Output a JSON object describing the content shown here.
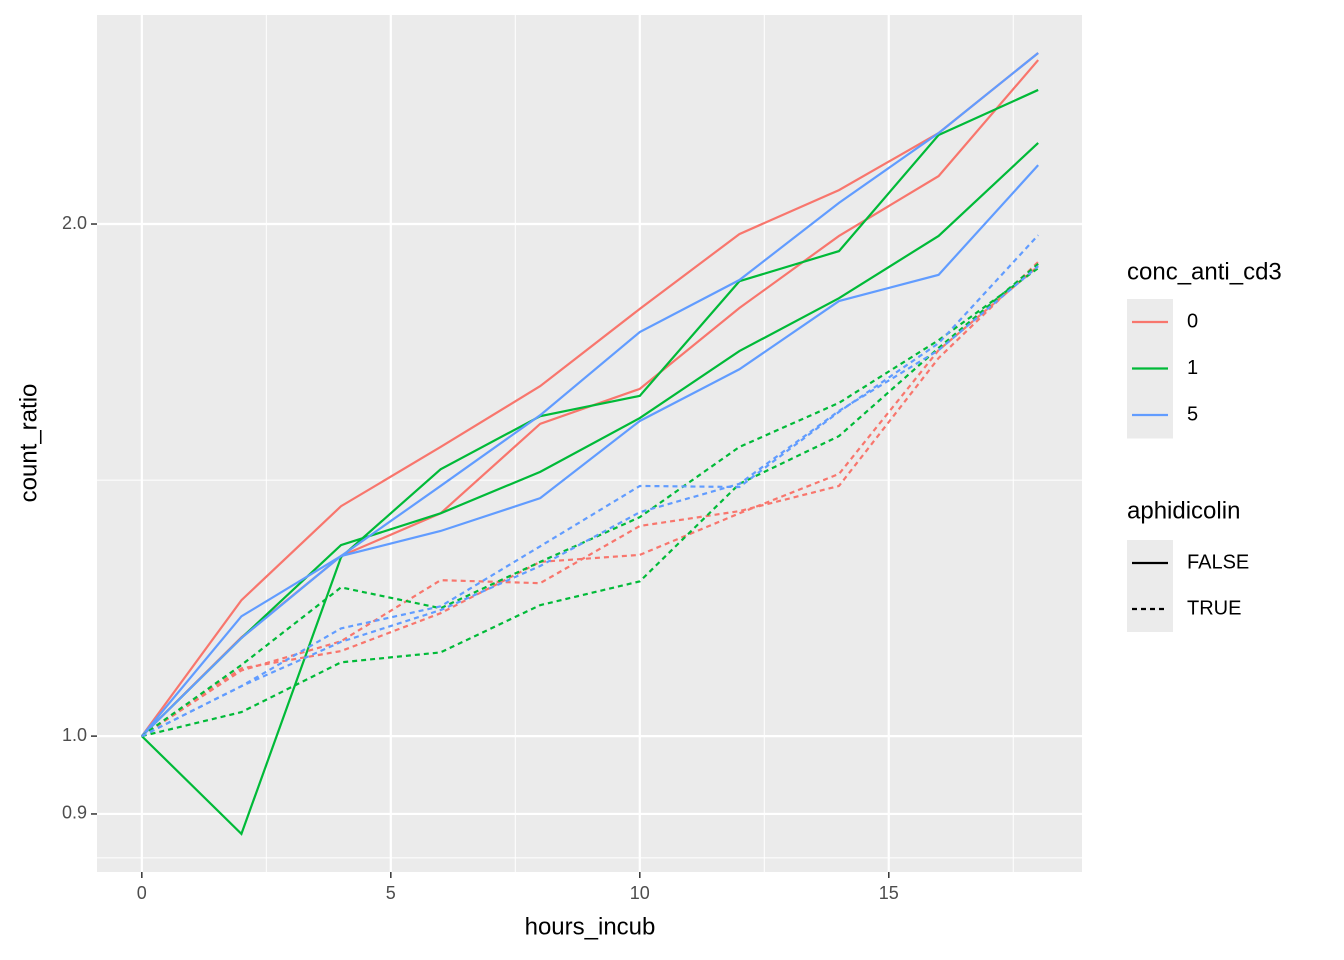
{
  "chart_data": {
    "type": "line",
    "xlabel": "hours_incub",
    "ylabel": "count_ratio",
    "x": [
      0,
      2,
      4,
      6,
      8,
      10,
      12,
      14,
      16,
      18
    ],
    "xlim": [
      -0.9,
      18.88
    ],
    "xticks": [
      0,
      5,
      10,
      15
    ],
    "xminor": [
      2.5,
      7.5,
      12.5,
      17.5
    ],
    "ylim": [
      0.832,
      2.654
    ],
    "ylog": true,
    "yticks": [
      {
        "value": 0.9,
        "label": "0.9"
      },
      {
        "value": 1,
        "label": "1.0"
      },
      {
        "value": 2,
        "label": "2.0"
      }
    ],
    "yminor": [
      0.848,
      1.414
    ],
    "grid": true,
    "legend": {
      "color": {
        "title": "conc_anti_cd3",
        "labels": [
          "0",
          "1",
          "5"
        ],
        "colors": [
          "#F8766D",
          "#00BA38",
          "#619CFF"
        ]
      },
      "linetype": {
        "title": "aphidicolin",
        "labels": [
          "FALSE",
          "TRUE"
        ],
        "dashed": [
          false,
          true
        ]
      }
    },
    "series": [
      {
        "color": "#F8766D",
        "dashed": false,
        "values": [
          1,
          1.202,
          1.365,
          1.479,
          1.606,
          1.783,
          1.973,
          2.094,
          2.262,
          2.521
        ]
      },
      {
        "color": "#F8766D",
        "dashed": false,
        "values": [
          1,
          1.143,
          1.276,
          1.352,
          1.526,
          1.6,
          1.785,
          1.968,
          2.134,
          2.497
        ]
      },
      {
        "color": "#00BA38",
        "dashed": false,
        "values": [
          1,
          0.876,
          1.274,
          1.435,
          1.542,
          1.585,
          1.851,
          1.928,
          2.256,
          2.398
        ]
      },
      {
        "color": "#00BA38",
        "dashed": false,
        "values": [
          1,
          1.142,
          1.295,
          1.352,
          1.43,
          1.538,
          1.684,
          1.809,
          1.968,
          2.232
        ]
      },
      {
        "color": "#619CFF",
        "dashed": false,
        "values": [
          1,
          1.176,
          1.276,
          1.403,
          1.544,
          1.728,
          1.854,
          2.058,
          2.262,
          2.521
        ]
      },
      {
        "color": "#619CFF",
        "dashed": false,
        "values": [
          1,
          1.142,
          1.276,
          1.32,
          1.38,
          1.532,
          1.643,
          1.802,
          1.867,
          2.166
        ]
      },
      {
        "color": "#F8766D",
        "dashed": true,
        "values": [
          1,
          1.093,
          1.137,
          1.235,
          1.23,
          1.329,
          1.356,
          1.403,
          1.668,
          1.9
        ]
      },
      {
        "color": "#F8766D",
        "dashed": true,
        "values": [
          1,
          1.096,
          1.122,
          1.181,
          1.266,
          1.278,
          1.352,
          1.426,
          1.686,
          1.889
        ]
      },
      {
        "color": "#00BA38",
        "dashed": true,
        "values": [
          1,
          1.101,
          1.223,
          1.189,
          1.266,
          1.345,
          1.479,
          1.57,
          1.709,
          1.884
        ]
      },
      {
        "color": "#00BA38",
        "dashed": true,
        "values": [
          1,
          1.033,
          1.105,
          1.12,
          1.194,
          1.233,
          1.407,
          1.501,
          1.691,
          1.895
        ]
      },
      {
        "color": "#619CFF",
        "dashed": true,
        "values": [
          1,
          1.07,
          1.157,
          1.192,
          1.293,
          1.403,
          1.401,
          1.551,
          1.702,
          1.97
        ]
      },
      {
        "color": "#619CFF",
        "dashed": true,
        "values": [
          1,
          1.07,
          1.136,
          1.186,
          1.259,
          1.354,
          1.407,
          1.553,
          1.686,
          1.889
        ]
      }
    ]
  }
}
